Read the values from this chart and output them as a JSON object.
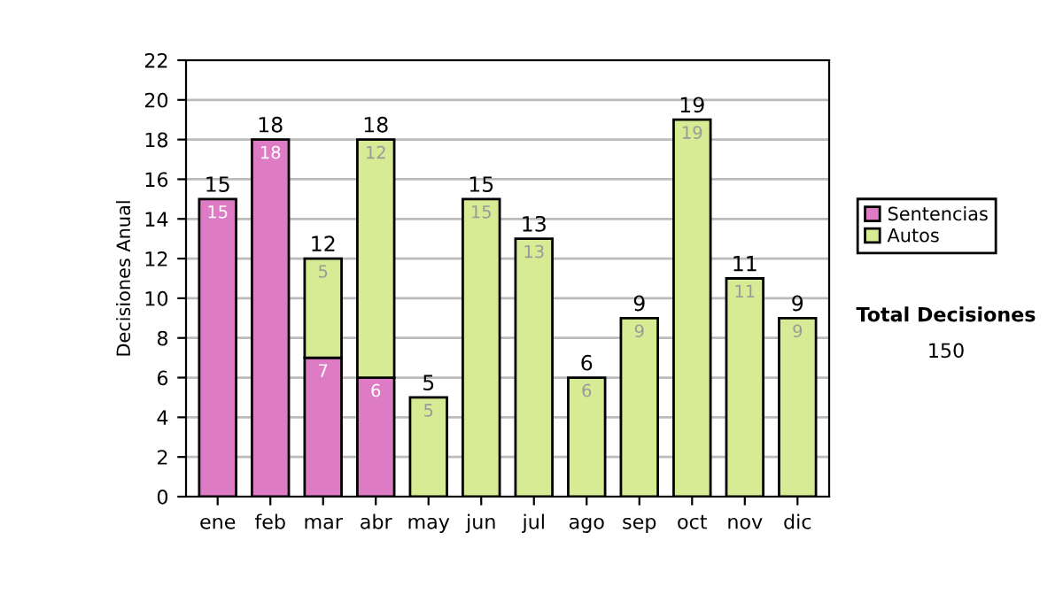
{
  "chart_data": {
    "type": "bar",
    "stacked": true,
    "ylabel": "Decisiones Anual",
    "categories": [
      "ene",
      "feb",
      "mar",
      "abr",
      "may",
      "jun",
      "jul",
      "ago",
      "sep",
      "oct",
      "nov",
      "dic"
    ],
    "series": [
      {
        "name": "Sentencias",
        "color": "#dd7cc4",
        "values": [
          15,
          18,
          7,
          6,
          null,
          null,
          null,
          null,
          null,
          null,
          null,
          null
        ]
      },
      {
        "name": "Autos",
        "color": "#d6eb94",
        "values": [
          null,
          null,
          5,
          12,
          5,
          15,
          13,
          6,
          9,
          19,
          11,
          9
        ]
      }
    ],
    "data_labels": true,
    "totals": [
      "15",
      "18",
      "12",
      "18",
      "5",
      "15",
      "13",
      "6",
      "9",
      "19",
      "11",
      "9"
    ],
    "ylim": [
      0,
      22
    ],
    "yticks": [
      0,
      2,
      4,
      6,
      8,
      10,
      12,
      14,
      16,
      18,
      20,
      22
    ],
    "grid": "y",
    "legend": "right",
    "annotations": [
      "Total Decisiones",
      "150"
    ]
  }
}
